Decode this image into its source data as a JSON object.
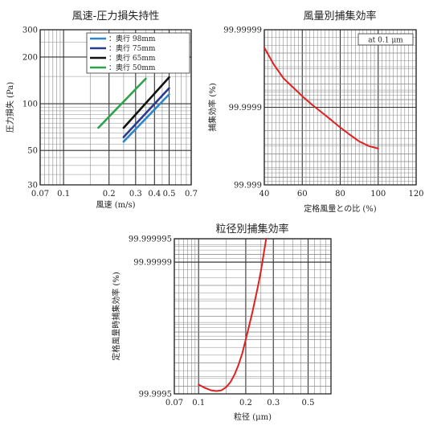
{
  "chart_data": [
    {
      "type": "line",
      "title": "風速-圧力損失持性",
      "xlabel": "風速 (m/s)",
      "ylabel": "圧力損失 (Pa)",
      "xscale": "log",
      "yscale": "log",
      "xlim": [
        0.07,
        0.7
      ],
      "ylim": [
        30,
        300
      ],
      "xticks": [
        0.07,
        0.1,
        0.2,
        0.3,
        0.4,
        0.5,
        0.7
      ],
      "xtick_labels": [
        "0.07",
        "0.1",
        "0.2",
        "0.3",
        "0.4",
        "0.5",
        "0.7"
      ],
      "yticks": [
        30,
        50,
        100,
        200,
        300
      ],
      "ytick_labels": [
        "30",
        "50",
        "100",
        "200",
        "300"
      ],
      "grid": true,
      "legend_position": "top-right",
      "series": [
        {
          "name": "：奥行 98mm",
          "color": "#2e86c8",
          "x": [
            0.25,
            0.5
          ],
          "y": [
            57,
            115
          ]
        },
        {
          "name": "：奥行 75mm",
          "color": "#2a3a8c",
          "x": [
            0.25,
            0.5
          ],
          "y": [
            61,
            126
          ]
        },
        {
          "name": "：奥行 65mm",
          "color": "#111111",
          "x": [
            0.25,
            0.5
          ],
          "y": [
            70,
            148
          ]
        },
        {
          "name": "：奥行 50mm",
          "color": "#2ca34a",
          "x": [
            0.17,
            0.35
          ],
          "y": [
            70,
            145
          ]
        }
      ]
    },
    {
      "type": "line",
      "title": "風量別捕集効率",
      "xlabel": "定格風量との比 (%)",
      "ylabel": "捕集効率 (%)",
      "yscale": "penetration-log",
      "xlim": [
        40,
        120
      ],
      "ylim": [
        99.999,
        99.99999
      ],
      "xticks": [
        40,
        60,
        80,
        100,
        120
      ],
      "xtick_labels": [
        "40",
        "60",
        "80",
        "100",
        "120"
      ],
      "yticks": [
        99.999,
        99.9999,
        99.99999
      ],
      "ytick_labels": [
        "99.999",
        "99.9999",
        "99.99999"
      ],
      "annotation": "at 0.1 μm",
      "grid": true,
      "series": [
        {
          "color": "#e02020",
          "x": [
            40,
            45,
            50,
            55,
            60,
            65,
            70,
            75,
            80,
            85,
            90,
            95,
            100
          ],
          "y": [
            99.999983,
            99.999972,
            99.999958,
            99.999945,
            99.999928,
            99.999908,
            99.999885,
            99.999856,
            99.999818,
            99.999775,
            99.999725,
            99.999685,
            99.99966
          ]
        }
      ]
    },
    {
      "type": "line",
      "title": "粒径別捕集効率",
      "xlabel": "粒径 (μm)",
      "ylabel": "定格風量時捕集効率 (%)",
      "xscale": "log",
      "yscale": "penetration-log",
      "xlim": [
        0.07,
        0.7
      ],
      "ylim": [
        99.9995,
        99.999995
      ],
      "xticks": [
        0.07,
        0.1,
        0.2,
        0.3,
        0.5
      ],
      "xtick_labels": [
        "0.07",
        "0.1",
        "0.2",
        "0.3",
        "0.5"
      ],
      "yticks": [
        99.9995,
        99.99999,
        99.999995
      ],
      "ytick_labels": [
        "99.9995",
        "99.99999",
        "99.999995"
      ],
      "grid": true,
      "series": [
        {
          "color": "#e02020",
          "x": [
            0.1,
            0.11,
            0.12,
            0.13,
            0.14,
            0.15,
            0.16,
            0.17,
            0.18,
            0.19,
            0.2,
            0.21,
            0.22,
            0.23,
            0.24,
            0.25,
            0.26,
            0.27
          ],
          "y": [
            99.99962,
            99.99958,
            99.99955,
            99.99954,
            99.99955,
            99.99959,
            99.99965,
            99.99972,
            99.99979,
            99.99985,
            99.9999,
            99.999933,
            99.999955,
            99.99997,
            99.99998,
            99.999987,
            99.999992,
            99.999995
          ]
        }
      ]
    }
  ]
}
